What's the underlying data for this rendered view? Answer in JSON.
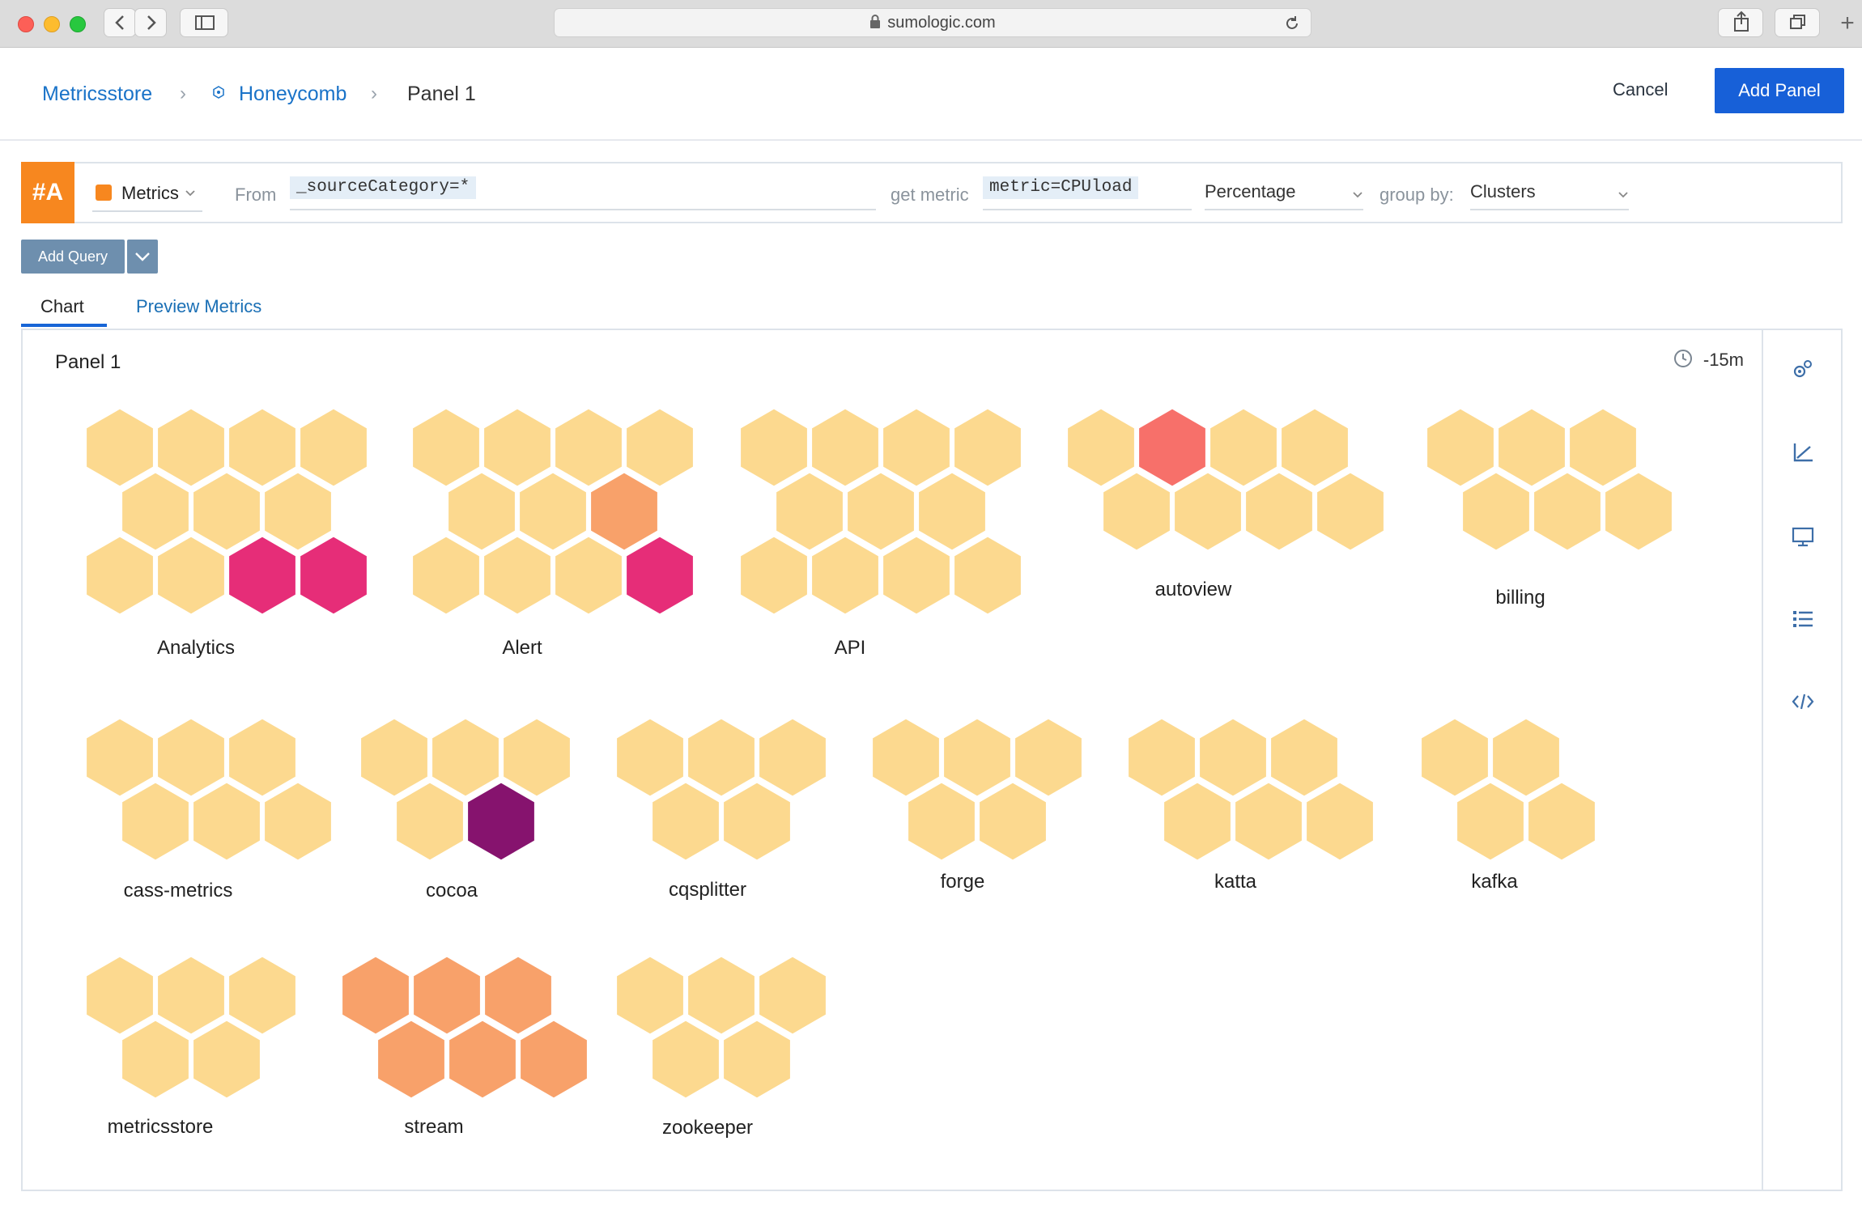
{
  "browser": {
    "url": "sumologic.com"
  },
  "breadcrumb": {
    "root": "Metricsstore",
    "dashboard": "Honeycomb",
    "current": "Panel 1"
  },
  "actions": {
    "cancel": "Cancel",
    "add_panel": "Add Panel"
  },
  "query": {
    "label": "#A",
    "type": "Metrics",
    "from_label": "From",
    "from_value": "_sourceCategory=*",
    "metric_label": "get metric",
    "metric_value": "metric=CPUload",
    "aggregation": "Percentage",
    "group_by_label": "group by:",
    "group_by_value": "Clusters"
  },
  "add_query": {
    "label": "Add Query"
  },
  "tabs": [
    {
      "label": "Chart",
      "active": true
    },
    {
      "label": "Preview Metrics",
      "active": false
    }
  ],
  "panel": {
    "title": "Panel 1",
    "time_range": "-15m"
  },
  "side_tools": [
    "gears-icon",
    "chart-axis-icon",
    "monitor-icon",
    "list-icon",
    "code-icon"
  ],
  "colors": {
    "accent": "#1760d8",
    "query_label": "#f7871f",
    "hex_normal": "#fcd98f",
    "hex_warn": "#f8a16a",
    "hex_high": "#f7706a",
    "hex_critical": "#e62d78",
    "hex_extreme": "#86136e"
  },
  "chart_data": {
    "type": "honeycomb",
    "legend": "none",
    "groups": [
      {
        "name": "Analytics",
        "cells": [
          "normal",
          "normal",
          "normal",
          "normal",
          "normal",
          "normal",
          "normal",
          "normal",
          "normal",
          "critical",
          "critical"
        ]
      },
      {
        "name": "Alert",
        "cells": [
          "normal",
          "normal",
          "normal",
          "normal",
          "normal",
          "normal",
          "warn",
          "normal",
          "normal",
          "normal",
          "critical"
        ]
      },
      {
        "name": "API",
        "cells": [
          "normal",
          "normal",
          "normal",
          "normal",
          "normal",
          "normal",
          "normal",
          "normal",
          "normal",
          "normal",
          "normal"
        ]
      },
      {
        "name": "autoview",
        "cells": [
          "normal",
          "high",
          "normal",
          "normal",
          "normal",
          "normal",
          "normal",
          "normal"
        ]
      },
      {
        "name": "billing",
        "cells": [
          "normal",
          "normal",
          "normal",
          "normal",
          "normal",
          "normal"
        ]
      },
      {
        "name": "cass-metrics",
        "cells": [
          "normal",
          "normal",
          "normal",
          "normal",
          "normal",
          "normal"
        ]
      },
      {
        "name": "cocoa",
        "cells": [
          "normal",
          "normal",
          "normal",
          "normal",
          "extreme"
        ]
      },
      {
        "name": "cqsplitter",
        "cells": [
          "normal",
          "normal",
          "normal",
          "normal",
          "normal"
        ]
      },
      {
        "name": "forge",
        "cells": [
          "normal",
          "normal",
          "normal",
          "normal",
          "normal"
        ]
      },
      {
        "name": "katta",
        "cells": [
          "normal",
          "normal",
          "normal",
          "normal",
          "normal",
          "normal"
        ]
      },
      {
        "name": "kafka",
        "cells": [
          "normal",
          "normal",
          "normal",
          "normal"
        ]
      },
      {
        "name": "metricsstore",
        "cells": [
          "normal",
          "normal",
          "normal",
          "normal",
          "normal"
        ]
      },
      {
        "name": "stream",
        "cells": [
          "warn",
          "warn",
          "warn",
          "warn",
          "warn",
          "warn"
        ]
      },
      {
        "name": "zookeeper",
        "cells": [
          "normal",
          "normal",
          "normal",
          "normal",
          "normal"
        ]
      }
    ]
  }
}
